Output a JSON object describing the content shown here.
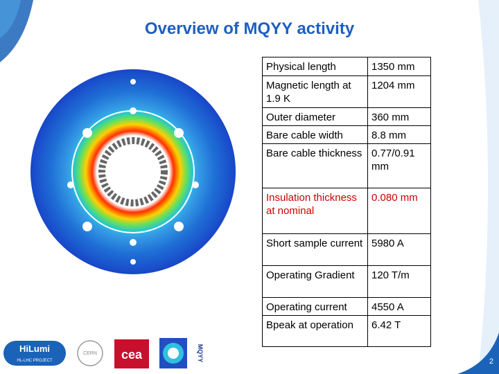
{
  "header": {
    "title": "Overview of MQYY activity"
  },
  "table": {
    "rows": [
      [
        "Physical length",
        "1350 mm"
      ],
      [
        "Magnetic length at 1.9 K",
        "1204 mm"
      ],
      [
        "Outer diameter",
        "360 mm"
      ],
      [
        "Bare cable width",
        "8.8 mm"
      ],
      [
        "Bare cable thickness",
        "0.77/0.91 mm"
      ],
      [
        "Insulation thickness at nominal",
        "0.080 mm"
      ],
      [
        "Short sample current",
        "5980 A"
      ],
      [
        "Operating Gradient",
        "120 T/m"
      ],
      [
        "Operating current",
        "4550 A"
      ],
      [
        "Bpeak at operation",
        "6.42 T"
      ]
    ],
    "highlight_row": 5,
    "highlight_color": "#cc0000"
  },
  "logos": {
    "hilumi": "HiLumi",
    "hilumi_sub": "HL-LHC PROJECT",
    "cern": "CERN",
    "cea": "cea",
    "mqyy": "MQYY"
  },
  "footer": {
    "page": "2"
  }
}
